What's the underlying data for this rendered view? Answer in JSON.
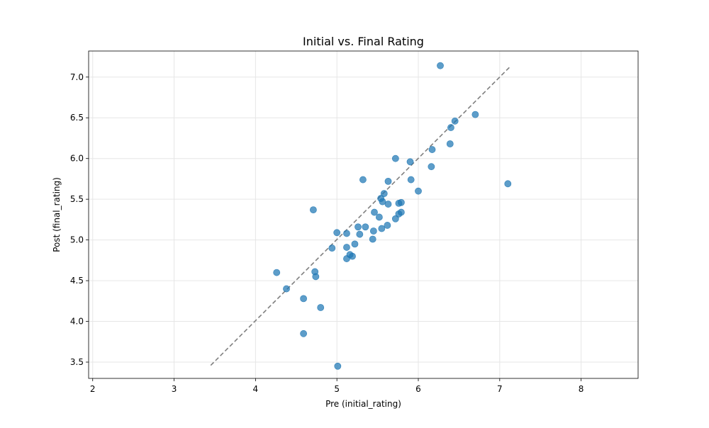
{
  "chart_data": {
    "type": "scatter",
    "title": "Initial vs. Final Rating",
    "xlabel": "Pre (initial_rating)",
    "ylabel": "Post (final_rating)",
    "xlim": [
      1.95,
      8.7
    ],
    "ylim": [
      3.3,
      7.32
    ],
    "xticks": [
      "2",
      "3",
      "4",
      "5",
      "6",
      "7",
      "8"
    ],
    "yticks": [
      "3.5",
      "4.0",
      "4.5",
      "5.0",
      "5.5",
      "6.0",
      "6.5",
      "7.0"
    ],
    "grid": true,
    "colors": {
      "points": "#1f77b4",
      "reference_line": "#7f7f7f",
      "grid": "#e6e6e6",
      "axes": "#000000"
    },
    "reference_line": {
      "style": "dashed",
      "x": [
        3.45,
        7.13
      ],
      "y": [
        3.46,
        7.13
      ]
    },
    "points": [
      {
        "x": 6.27,
        "y": 7.14
      },
      {
        "x": 6.7,
        "y": 6.54
      },
      {
        "x": 6.45,
        "y": 6.46
      },
      {
        "x": 6.4,
        "y": 6.38
      },
      {
        "x": 6.39,
        "y": 6.18
      },
      {
        "x": 6.17,
        "y": 6.11
      },
      {
        "x": 5.72,
        "y": 6.0
      },
      {
        "x": 5.9,
        "y": 5.96
      },
      {
        "x": 6.16,
        "y": 5.9
      },
      {
        "x": 5.32,
        "y": 5.74
      },
      {
        "x": 5.63,
        "y": 5.72
      },
      {
        "x": 5.91,
        "y": 5.74
      },
      {
        "x": 7.1,
        "y": 5.69
      },
      {
        "x": 6.0,
        "y": 5.6
      },
      {
        "x": 5.58,
        "y": 5.57
      },
      {
        "x": 5.54,
        "y": 5.51
      },
      {
        "x": 5.56,
        "y": 5.47
      },
      {
        "x": 5.79,
        "y": 5.46
      },
      {
        "x": 5.76,
        "y": 5.45
      },
      {
        "x": 5.63,
        "y": 5.44
      },
      {
        "x": 4.71,
        "y": 5.37
      },
      {
        "x": 5.46,
        "y": 5.34
      },
      {
        "x": 5.79,
        "y": 5.34
      },
      {
        "x": 5.76,
        "y": 5.32
      },
      {
        "x": 5.52,
        "y": 5.28
      },
      {
        "x": 5.72,
        "y": 5.26
      },
      {
        "x": 5.62,
        "y": 5.18
      },
      {
        "x": 5.26,
        "y": 5.16
      },
      {
        "x": 5.35,
        "y": 5.16
      },
      {
        "x": 5.55,
        "y": 5.14
      },
      {
        "x": 5.45,
        "y": 5.11
      },
      {
        "x": 5.0,
        "y": 5.09
      },
      {
        "x": 5.12,
        "y": 5.08
      },
      {
        "x": 5.28,
        "y": 5.07
      },
      {
        "x": 5.44,
        "y": 5.01
      },
      {
        "x": 5.22,
        "y": 4.95
      },
      {
        "x": 5.12,
        "y": 4.91
      },
      {
        "x": 4.94,
        "y": 4.9
      },
      {
        "x": 5.16,
        "y": 4.82
      },
      {
        "x": 5.19,
        "y": 4.8
      },
      {
        "x": 5.12,
        "y": 4.77
      },
      {
        "x": 4.26,
        "y": 4.6
      },
      {
        "x": 4.73,
        "y": 4.61
      },
      {
        "x": 4.74,
        "y": 4.55
      },
      {
        "x": 4.38,
        "y": 4.4
      },
      {
        "x": 4.59,
        "y": 4.28
      },
      {
        "x": 4.8,
        "y": 4.17
      },
      {
        "x": 4.59,
        "y": 3.85
      },
      {
        "x": 5.01,
        "y": 3.45
      }
    ]
  }
}
